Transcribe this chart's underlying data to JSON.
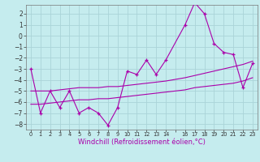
{
  "xlabel": "Windchill (Refroidissement éolien,°C)",
  "background_color": "#c5ecee",
  "grid_color": "#aad4d8",
  "line_color": "#aa00aa",
  "ylim": [
    -8.5,
    2.8
  ],
  "xlim": [
    -0.5,
    23.5
  ],
  "yticks": [
    -8,
    -7,
    -6,
    -5,
    -4,
    -3,
    -2,
    -1,
    0,
    1,
    2
  ],
  "jagged_x": [
    0,
    1,
    2,
    3,
    4,
    5,
    6,
    7,
    8,
    9,
    10,
    11,
    12,
    13,
    14,
    16,
    17,
    18,
    19,
    20,
    21,
    22,
    23
  ],
  "jagged_y": [
    -3.0,
    -7.0,
    -5.0,
    -6.5,
    -5.0,
    -7.0,
    -6.5,
    -7.0,
    -8.1,
    -6.5,
    -3.2,
    -3.5,
    -2.2,
    -3.5,
    -2.2,
    1.0,
    3.0,
    2.0,
    -0.7,
    -1.5,
    -1.7,
    -4.7,
    -2.5
  ],
  "upper_x": [
    0,
    1,
    2,
    3,
    4,
    5,
    6,
    7,
    8,
    9,
    10,
    11,
    12,
    13,
    14,
    16,
    17,
    18,
    19,
    20,
    21,
    22,
    23
  ],
  "upper_y": [
    -5.0,
    -5.0,
    -5.0,
    -4.9,
    -4.8,
    -4.7,
    -4.7,
    -4.7,
    -4.6,
    -4.6,
    -4.5,
    -4.4,
    -4.3,
    -4.2,
    -4.1,
    -3.8,
    -3.6,
    -3.4,
    -3.2,
    -3.0,
    -2.8,
    -2.6,
    -2.3
  ],
  "lower_x": [
    0,
    1,
    2,
    3,
    4,
    5,
    6,
    7,
    8,
    9,
    10,
    11,
    12,
    13,
    14,
    16,
    17,
    18,
    19,
    20,
    21,
    22,
    23
  ],
  "lower_y": [
    -6.2,
    -6.2,
    -6.1,
    -6.0,
    -5.9,
    -5.8,
    -5.8,
    -5.7,
    -5.7,
    -5.6,
    -5.5,
    -5.4,
    -5.3,
    -5.2,
    -5.1,
    -4.9,
    -4.7,
    -4.6,
    -4.5,
    -4.4,
    -4.3,
    -4.1,
    -3.8
  ]
}
